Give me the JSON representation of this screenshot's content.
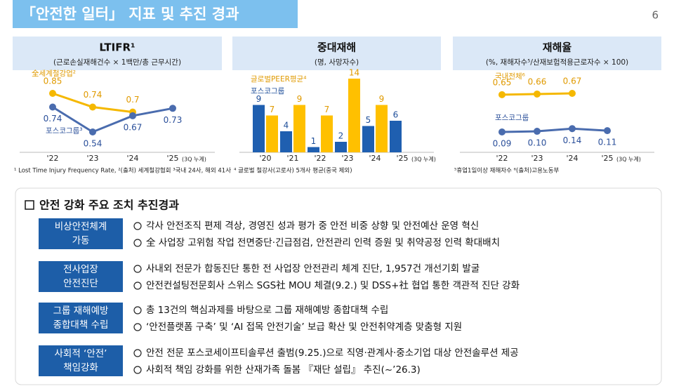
{
  "header": {
    "title": "「안전한 일터」 지표 및 추진 경과",
    "page": "6"
  },
  "chart_data": [
    {
      "type": "line",
      "title": "LTIFR¹",
      "subtitle": "(근로손실재해건수 × 1백만/총 근무시간)",
      "categories": [
        "'22",
        "'23",
        "'24",
        "'25"
      ],
      "category_note": "(3Q 누계)",
      "series": [
        {
          "name": "全세계철강업²",
          "color": "#f5b800",
          "values": [
            0.85,
            0.74,
            0.7,
            null
          ]
        },
        {
          "name": "포스코그룹³",
          "color": "#4a6cae",
          "values": [
            0.74,
            0.54,
            0.67,
            0.73
          ]
        }
      ],
      "footnote": "¹ Lost Time Injury Frequency Rate, ²(출처) 세계철강협회 ³국내 24사, 해외 41사"
    },
    {
      "type": "bar",
      "title": "중대재해",
      "subtitle": "(명, 사망자수)",
      "categories": [
        "'20",
        "'21",
        "'22",
        "'23",
        "'24",
        "'25"
      ],
      "category_note": "(3Q 누계)",
      "series": [
        {
          "name": "글로벌PEER평균⁴",
          "color": "#ffc000",
          "values": [
            7,
            9,
            7,
            14,
            9,
            null
          ]
        },
        {
          "name": "포스코그룹",
          "color": "#1f5fb0",
          "values": [
            9,
            4,
            1,
            2,
            5,
            6
          ]
        }
      ],
      "footnote": "⁴ 글로벌 철강사(고로사) 5개사 평균(중국 제외)"
    },
    {
      "type": "line",
      "title": "재해율",
      "subtitle": "(%, 재해자수⁵/산재보험적용근로자수 × 100)",
      "categories": [
        "'22",
        "'23",
        "'24",
        "'25"
      ],
      "category_note": "(3Q 누계)",
      "series": [
        {
          "name": "국내전체⁶",
          "color": "#f5b800",
          "values": [
            0.65,
            0.66,
            0.67,
            null
          ]
        },
        {
          "name": "포스코그룹",
          "color": "#4a6cae",
          "values": [
            0.09,
            0.1,
            0.14,
            0.11
          ],
          "value_labels": [
            "0.09",
            "0.10",
            "0.14",
            "0.11"
          ]
        }
      ],
      "footnote": "⁵휴업1일이상 재해자수 ⁶(출처)고용노동부"
    }
  ],
  "section": {
    "title": "안전 강화 주요 조치 추진경과",
    "rows": [
      {
        "label": [
          "비상안전체계",
          "가동"
        ],
        "items": [
          "각사 안전조직 편제 격상, 경영진 성과 평가 중 안전 비중 상향 및 안전예산 운영 혁신",
          "全 사업장 고위험 작업 전면중단·긴급점검, 안전관리 인력 증원 및 취약공정 인력 확대배치"
        ]
      },
      {
        "label": [
          "전사업장",
          "안전진단"
        ],
        "items": [
          "사내외 전문가 합동진단 통한 전 사업장 안전관리 체계 진단, 1,957건 개선기회 발굴",
          "안전컨설팅전문회사 스위스 SGS社 MOU 체결(9.2.) 및 DSS+社 협업 통한 객관적 진단 강화"
        ]
      },
      {
        "label": [
          "그룹 재해예방",
          "종합대책 수립"
        ],
        "items": [
          "총 13건의 핵심과제를 바탕으로 그룹 재해예방 종합대책 수립",
          "‘안전플랫폼 구축’ 및 ‘AI 접목 안전기술’ 보급 확산 및 안전취약계층 맞춤형 지원"
        ]
      },
      {
        "label": [
          "사회적 ‘안전’",
          "책임강화"
        ],
        "items": [
          "안전 전문 포스코세이프티솔루션 출범(9.25.)으로 직영·관계사·중소기업 대상 안전솔루션 제공",
          "사회적 책임 강화를 위한 산재가족 돌봄 『재단 설립』 추진(~’26.3)"
        ]
      }
    ]
  }
}
